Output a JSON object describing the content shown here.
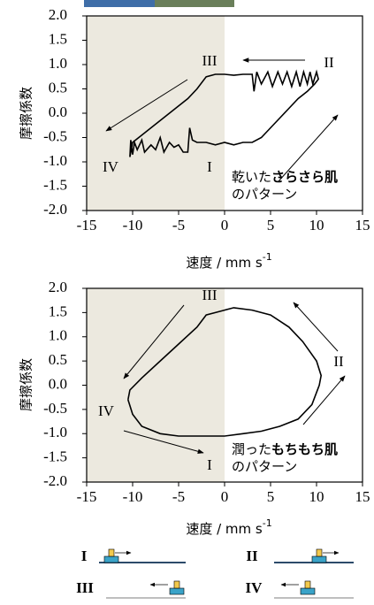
{
  "chart_data": [
    {
      "type": "line",
      "xlabel": "速度 / mm s",
      "xlabel_sup": "-1",
      "ylabel": "摩擦係数",
      "xlim": [
        -15,
        15
      ],
      "xticks": [
        -15,
        -10,
        -5,
        0,
        5,
        10,
        15
      ],
      "ylim": [
        -2,
        2
      ],
      "yticks": [
        {
          "value": 2,
          "label": "2.0"
        },
        1.5,
        {
          "value": 1,
          "label": "1.0"
        },
        0.5,
        {
          "value": 0,
          "label": "0.0"
        },
        -0.5,
        {
          "value": -1,
          "label": "-1.0"
        },
        -1.5,
        {
          "value": -2,
          "label": "-2.0"
        }
      ],
      "shade_color": "#ece9df",
      "x": [
        -10.3,
        -10.2,
        -10,
        -9.8,
        -9.5,
        -9,
        -8.7,
        -8,
        -7.5,
        -7,
        -6.6,
        -6,
        -5.5,
        -5,
        -4.5,
        -4,
        -3.8,
        -3.5,
        -3,
        -2,
        -1,
        0,
        1,
        2,
        3,
        4,
        5,
        6,
        7,
        8,
        9,
        9.8,
        10.2,
        10,
        9.6,
        9.3,
        9,
        8.6,
        8.2,
        7.8,
        7.3,
        6.8,
        6.3,
        5.8,
        5.2,
        4.7,
        4,
        3.5,
        3.2,
        3,
        2,
        1,
        0,
        -1,
        -2,
        -3,
        -4,
        -5,
        -6,
        -7,
        -8,
        -9,
        -10,
        -10.3
      ],
      "series": [
        {
          "color": "#000000",
          "values": [
            -0.9,
            -0.55,
            -0.85,
            -0.6,
            -0.75,
            -0.55,
            -0.8,
            -0.65,
            -0.75,
            -0.5,
            -0.8,
            -0.6,
            -0.7,
            -0.65,
            -0.8,
            -0.8,
            -0.3,
            -0.55,
            -0.6,
            -0.6,
            -0.65,
            -0.6,
            -0.65,
            -0.6,
            -0.6,
            -0.5,
            -0.3,
            -0.1,
            0.1,
            0.3,
            0.45,
            0.6,
            0.7,
            0.85,
            0.6,
            0.85,
            0.6,
            0.85,
            0.55,
            0.85,
            0.55,
            0.85,
            0.6,
            0.85,
            0.55,
            0.85,
            0.6,
            0.85,
            0.45,
            0.8,
            0.8,
            0.78,
            0.8,
            0.8,
            0.75,
            0.5,
            0.3,
            0.15,
            0,
            -0.15,
            -0.3,
            -0.45,
            -0.6,
            -0.9
          ]
        }
      ],
      "annotations": [
        "III",
        "II",
        "IV",
        "I"
      ],
      "note": [
        "乾いた",
        "さらさら肌",
        "のパターン"
      ]
    },
    {
      "type": "line",
      "xlabel": "速度 /  mm s",
      "xlabel_sup": "-1",
      "ylabel": "摩擦係数",
      "xlim": [
        -15,
        15
      ],
      "xticks": [
        -15,
        -10,
        -5,
        0,
        5,
        10,
        15
      ],
      "ylim": [
        -2,
        2
      ],
      "yticks": [
        {
          "value": 2,
          "label": "2.0"
        },
        1.5,
        {
          "value": 1,
          "label": "1.0"
        },
        0.5,
        {
          "value": 0,
          "label": "0.0"
        },
        -0.5,
        {
          "value": -1,
          "label": "-1.0"
        },
        -1.5,
        {
          "value": -2,
          "label": "-2.0"
        }
      ],
      "shade_color": "#ece9df",
      "x": [
        -10.5,
        -10,
        -9,
        -7,
        -5,
        -3,
        -1,
        0,
        2,
        4,
        6,
        8,
        9.5,
        10.3,
        10.5,
        10,
        8.5,
        7,
        5,
        3,
        1,
        0,
        -1,
        -2,
        -3,
        -5,
        -7,
        -9,
        -10.3,
        -10.5
      ],
      "series": [
        {
          "color": "#000000",
          "values": [
            -0.3,
            -0.6,
            -0.85,
            -1.0,
            -1.05,
            -1.05,
            -1.05,
            -1.05,
            -1.0,
            -0.95,
            -0.85,
            -0.7,
            -0.4,
            0,
            0.2,
            0.5,
            0.9,
            1.2,
            1.45,
            1.55,
            1.6,
            1.55,
            1.5,
            1.45,
            1.2,
            0.85,
            0.5,
            0.15,
            -0.1,
            -0.3
          ]
        }
      ],
      "annotations": [
        "III",
        "II",
        "IV",
        "I"
      ],
      "note": [
        "潤った",
        "もちもち肌",
        "のパターン"
      ]
    }
  ],
  "motion_legend": [
    "I",
    "II",
    "III",
    "IV"
  ]
}
